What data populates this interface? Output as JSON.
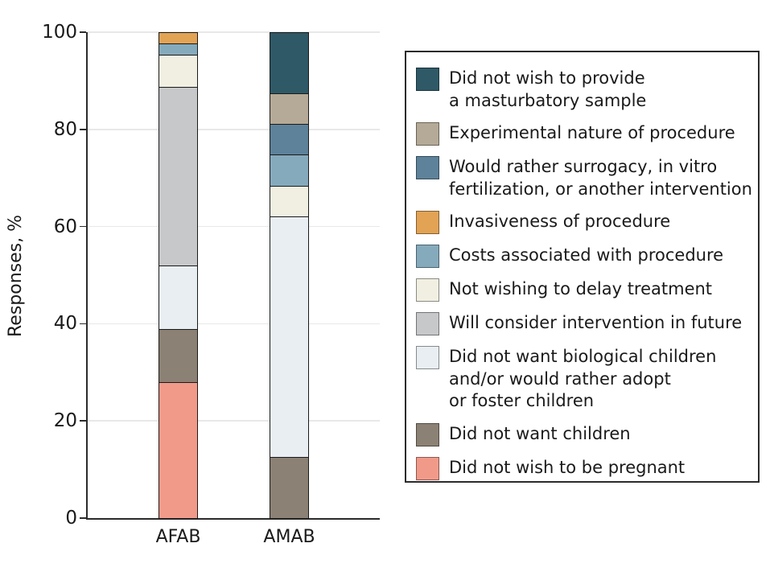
{
  "chart_data": {
    "type": "bar",
    "stacked": true,
    "title": "",
    "xlabel": "",
    "ylabel": "Responses, %",
    "ylim": [
      0,
      100
    ],
    "yticks": [
      0,
      20,
      40,
      60,
      80,
      100
    ],
    "grid": true,
    "legend_position": "right",
    "categories": [
      "AFAB",
      "AMAB"
    ],
    "series": [
      {
        "name": "Did not wish to be pregnant",
        "color": "#f29a8a",
        "values": [
          28.2,
          0
        ]
      },
      {
        "name": "Did not want children",
        "color": "#8b8174",
        "values": [
          10.9,
          12.5
        ]
      },
      {
        "name": "Did not want biological children and/or would rather adopt or foster children",
        "color": "#e8eef2",
        "values": [
          13.0,
          50.0
        ]
      },
      {
        "name": "Will consider intervention in future",
        "color": "#c7c8ca",
        "values": [
          37.0,
          0
        ]
      },
      {
        "name": "Not wishing to delay treatment",
        "color": "#f0efe2",
        "values": [
          6.5,
          6.25
        ]
      },
      {
        "name": "Costs associated with procedure",
        "color": "#85aabc",
        "values": [
          2.2,
          6.25
        ]
      },
      {
        "name": "Invasiveness of procedure",
        "color": "#e2a355",
        "values": [
          2.2,
          0
        ]
      },
      {
        "name": "Would rather surrogacy, in vitro fertilization, or another intervention",
        "color": "#5d829a",
        "values": [
          0,
          6.25
        ]
      },
      {
        "name": "Experimental nature of procedure",
        "color": "#b5aa97",
        "values": [
          0,
          6.25
        ]
      },
      {
        "name": "Did not wish to provide a masturbatory sample",
        "color": "#2f5967",
        "values": [
          0,
          12.5
        ]
      }
    ],
    "legend": [
      {
        "color": "#2f5967",
        "lines": [
          "Did not wish to provide",
          "a masturbatory sample"
        ]
      },
      {
        "color": "#b5aa97",
        "lines": [
          "Experimental nature of procedure"
        ]
      },
      {
        "color": "#5d829a",
        "lines": [
          "Would rather surrogacy, in vitro",
          "fertilization, or another intervention"
        ]
      },
      {
        "color": "#e2a355",
        "lines": [
          "Invasiveness of procedure"
        ]
      },
      {
        "color": "#85aabc",
        "lines": [
          "Costs associated with procedure"
        ]
      },
      {
        "color": "#f0efe2",
        "lines": [
          "Not wishing to delay treatment"
        ]
      },
      {
        "color": "#c7c8ca",
        "lines": [
          "Will consider intervention in future"
        ]
      },
      {
        "color": "#e8eef2",
        "lines": [
          "Did not want biological children",
          "and/or would rather adopt",
          "or foster children"
        ]
      },
      {
        "color": "#8b8174",
        "lines": [
          "Did not want children"
        ]
      },
      {
        "color": "#f29a8a",
        "lines": [
          "Did not wish to be pregnant"
        ]
      }
    ]
  }
}
